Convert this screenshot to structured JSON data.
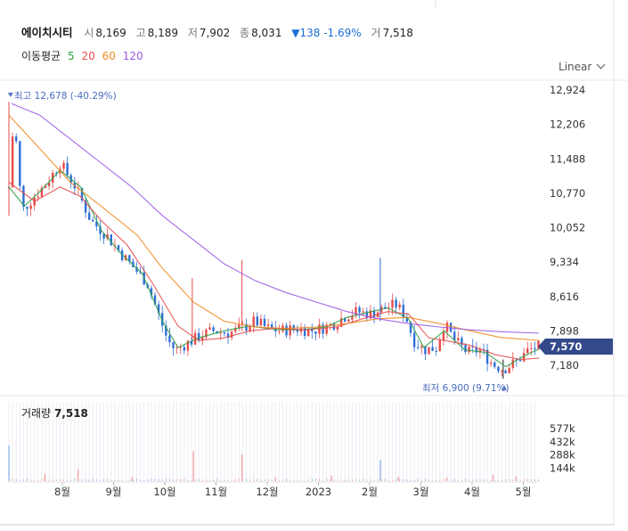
{
  "header": {
    "name": "에이치시티",
    "open_label": "시",
    "open": "8,169",
    "high_label": "고",
    "high": "8,189",
    "low_label": "저",
    "low": "7,902",
    "close_label": "종",
    "close": "8,031",
    "change": "▼138 -1.69%",
    "volume_label": "거",
    "volume": "7,518"
  },
  "moving_average": {
    "label": "이동평균",
    "periods": [
      {
        "text": "5",
        "color": "#2ea043"
      },
      {
        "text": "20",
        "color": "#e64b4b"
      },
      {
        "text": "60",
        "color": "#f08a1f"
      },
      {
        "text": "120",
        "color": "#9b59e6"
      }
    ]
  },
  "scale_selector": {
    "label": "Linear"
  },
  "chart_data": {
    "type": "candlestick",
    "price_axis": {
      "ticks": [
        "12,924",
        "12,206",
        "11,488",
        "10,770",
        "10,052",
        "9,334",
        "8,616",
        "7,898",
        "7,180"
      ],
      "range": [
        6900,
        12924
      ]
    },
    "current_price": "7,570",
    "max_annotation": {
      "text": "최고 12,678 (-40.29%)",
      "value": 12678,
      "month_index": 0.05
    },
    "min_annotation": {
      "text": "최저 6,900 (9.71%)",
      "value": 6900,
      "month_index": 9.65
    },
    "x_axis": {
      "labels": [
        "8월",
        "9월",
        "10월",
        "11월",
        "12월",
        "2023",
        "2월",
        "3월",
        "4월",
        "5월"
      ]
    },
    "series_price_month_values": [
      [
        0.0,
        10900
      ],
      [
        0.1,
        12400
      ],
      [
        0.25,
        10400
      ],
      [
        0.5,
        10700
      ],
      [
        0.75,
        11000
      ],
      [
        1.0,
        11400
      ],
      [
        1.3,
        10900
      ],
      [
        1.6,
        10200
      ],
      [
        1.9,
        9900
      ],
      [
        2.2,
        9500
      ],
      [
        2.45,
        9200
      ],
      [
        2.7,
        8900
      ],
      [
        2.9,
        8300
      ],
      [
        3.1,
        7700
      ],
      [
        3.25,
        7500
      ],
      [
        3.5,
        7650
      ],
      [
        3.75,
        7800
      ],
      [
        4.0,
        7900
      ],
      [
        4.3,
        7850
      ],
      [
        4.55,
        7950
      ],
      [
        4.8,
        8100
      ],
      [
        5.05,
        7950
      ],
      [
        5.3,
        7900
      ],
      [
        5.6,
        7950
      ],
      [
        5.9,
        7900
      ],
      [
        6.1,
        7950
      ],
      [
        6.35,
        8050
      ],
      [
        6.55,
        8200
      ],
      [
        6.8,
        8300
      ],
      [
        7.05,
        8250
      ],
      [
        7.3,
        8350
      ],
      [
        7.55,
        8450
      ],
      [
        7.75,
        8200
      ],
      [
        7.9,
        7700
      ],
      [
        8.1,
        7500
      ],
      [
        8.35,
        7550
      ],
      [
        8.5,
        8050
      ],
      [
        8.7,
        7700
      ],
      [
        8.95,
        7450
      ],
      [
        9.2,
        7500
      ],
      [
        9.45,
        7200
      ],
      [
        9.65,
        7100
      ],
      [
        9.9,
        7250
      ],
      [
        10.15,
        7500
      ],
      [
        10.35,
        7570
      ]
    ],
    "series": [
      {
        "name": "5",
        "values": [
          [
            0.0,
            10900
          ],
          [
            0.3,
            10500
          ],
          [
            0.6,
            10800
          ],
          [
            1.0,
            11250
          ],
          [
            1.4,
            10900
          ],
          [
            1.8,
            10000
          ],
          [
            2.2,
            9500
          ],
          [
            2.6,
            9100
          ],
          [
            3.0,
            8100
          ],
          [
            3.3,
            7550
          ],
          [
            3.7,
            7750
          ],
          [
            4.2,
            7900
          ],
          [
            4.7,
            8000
          ],
          [
            5.2,
            7930
          ],
          [
            5.7,
            7920
          ],
          [
            6.2,
            7980
          ],
          [
            6.6,
            8180
          ],
          [
            7.0,
            8280
          ],
          [
            7.4,
            8380
          ],
          [
            7.8,
            8150
          ],
          [
            8.1,
            7550
          ],
          [
            8.5,
            7900
          ],
          [
            8.9,
            7500
          ],
          [
            9.3,
            7450
          ],
          [
            9.7,
            7150
          ],
          [
            10.1,
            7400
          ],
          [
            10.35,
            7520
          ]
        ]
      },
      {
        "name": "20",
        "values": [
          [
            0.0,
            11000
          ],
          [
            0.5,
            10600
          ],
          [
            1.0,
            10900
          ],
          [
            1.4,
            10700
          ],
          [
            1.8,
            10200
          ],
          [
            2.3,
            9700
          ],
          [
            2.8,
            8900
          ],
          [
            3.3,
            8000
          ],
          [
            3.7,
            7700
          ],
          [
            4.2,
            7750
          ],
          [
            4.7,
            7900
          ],
          [
            5.2,
            7950
          ],
          [
            5.8,
            7920
          ],
          [
            6.4,
            7980
          ],
          [
            6.9,
            8150
          ],
          [
            7.4,
            8300
          ],
          [
            7.8,
            8250
          ],
          [
            8.2,
            7750
          ],
          [
            8.6,
            7680
          ],
          [
            9.0,
            7600
          ],
          [
            9.5,
            7400
          ],
          [
            10.0,
            7300
          ],
          [
            10.35,
            7330
          ]
        ]
      },
      {
        "name": "60",
        "values": [
          [
            0.0,
            12400
          ],
          [
            0.6,
            11700
          ],
          [
            1.2,
            11000
          ],
          [
            1.8,
            10500
          ],
          [
            2.5,
            9900
          ],
          [
            3.0,
            9200
          ],
          [
            3.6,
            8500
          ],
          [
            4.2,
            8100
          ],
          [
            4.8,
            7980
          ],
          [
            5.4,
            7950
          ],
          [
            6.0,
            7980
          ],
          [
            6.6,
            8050
          ],
          [
            7.2,
            8150
          ],
          [
            7.8,
            8180
          ],
          [
            8.4,
            8050
          ],
          [
            9.0,
            7900
          ],
          [
            9.6,
            7760
          ],
          [
            10.35,
            7700
          ]
        ]
      },
      {
        "name": "120",
        "values": [
          [
            0.05,
            12640
          ],
          [
            0.6,
            12400
          ],
          [
            1.2,
            11900
          ],
          [
            1.8,
            11400
          ],
          [
            2.4,
            10900
          ],
          [
            3.0,
            10300
          ],
          [
            3.6,
            9800
          ],
          [
            4.2,
            9300
          ],
          [
            4.8,
            8950
          ],
          [
            5.4,
            8700
          ],
          [
            6.0,
            8500
          ],
          [
            6.6,
            8300
          ],
          [
            7.2,
            8150
          ],
          [
            7.8,
            8050
          ],
          [
            8.4,
            7980
          ],
          [
            9.0,
            7920
          ],
          [
            9.6,
            7880
          ],
          [
            10.35,
            7850
          ]
        ]
      }
    ],
    "volume": {
      "label": "거래량",
      "value": "7,518",
      "ticks": [
        "577k",
        "432k",
        "288k",
        "144k"
      ],
      "range": [
        0,
        577
      ]
    },
    "volume_spikes_k": [
      [
        0.0,
        390
      ],
      [
        0.7,
        80
      ],
      [
        1.35,
        130
      ],
      [
        2.4,
        45
      ],
      [
        3.6,
        330
      ],
      [
        4.55,
        290
      ],
      [
        5.2,
        45
      ],
      [
        6.3,
        60
      ],
      [
        7.25,
        230
      ],
      [
        7.6,
        50
      ],
      [
        8.55,
        40
      ],
      [
        9.45,
        70
      ],
      [
        9.9,
        50
      ]
    ]
  }
}
